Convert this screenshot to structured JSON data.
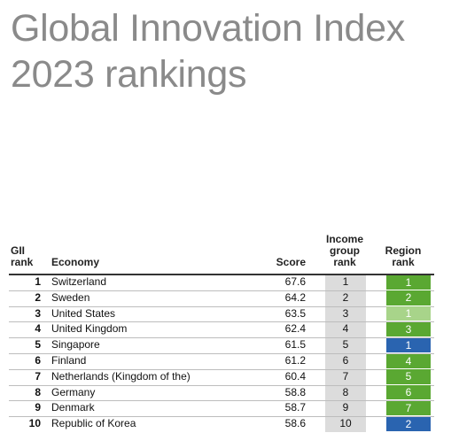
{
  "header": {
    "title_lines": [
      "Global Innovation Index",
      "2023 rankings"
    ]
  },
  "table": {
    "columns": [
      "GII rank",
      "Economy",
      "Score",
      "Income group rank",
      "Region rank"
    ],
    "rows": [
      {
        "gii_rank": 1,
        "economy": "Switzerland",
        "score": 67.6,
        "income_rank": 1,
        "region_rank": 1,
        "region_color": "#5aa832"
      },
      {
        "gii_rank": 2,
        "economy": "Sweden",
        "score": 64.2,
        "income_rank": 2,
        "region_rank": 2,
        "region_color": "#5aa832"
      },
      {
        "gii_rank": 3,
        "economy": "United States",
        "score": 63.5,
        "income_rank": 3,
        "region_rank": 1,
        "region_color": "#a8d48a"
      },
      {
        "gii_rank": 4,
        "economy": "United Kingdom",
        "score": 62.4,
        "income_rank": 4,
        "region_rank": 3,
        "region_color": "#5aa832"
      },
      {
        "gii_rank": 5,
        "economy": "Singapore",
        "score": 61.5,
        "income_rank": 5,
        "region_rank": 1,
        "region_color": "#2a64b0"
      },
      {
        "gii_rank": 6,
        "economy": "Finland",
        "score": 61.2,
        "income_rank": 6,
        "region_rank": 4,
        "region_color": "#5aa832"
      },
      {
        "gii_rank": 7,
        "economy": "Netherlands (Kingdom of the)",
        "score": 60.4,
        "income_rank": 7,
        "region_rank": 5,
        "region_color": "#5aa832"
      },
      {
        "gii_rank": 8,
        "economy": "Germany",
        "score": 58.8,
        "income_rank": 8,
        "region_rank": 6,
        "region_color": "#5aa832"
      },
      {
        "gii_rank": 9,
        "economy": "Denmark",
        "score": 58.7,
        "income_rank": 9,
        "region_rank": 7,
        "region_color": "#5aa832"
      },
      {
        "gii_rank": 10,
        "economy": "Republic of Korea",
        "score": 58.6,
        "income_rank": 10,
        "region_rank": 2,
        "region_color": "#2a64b0"
      }
    ]
  }
}
